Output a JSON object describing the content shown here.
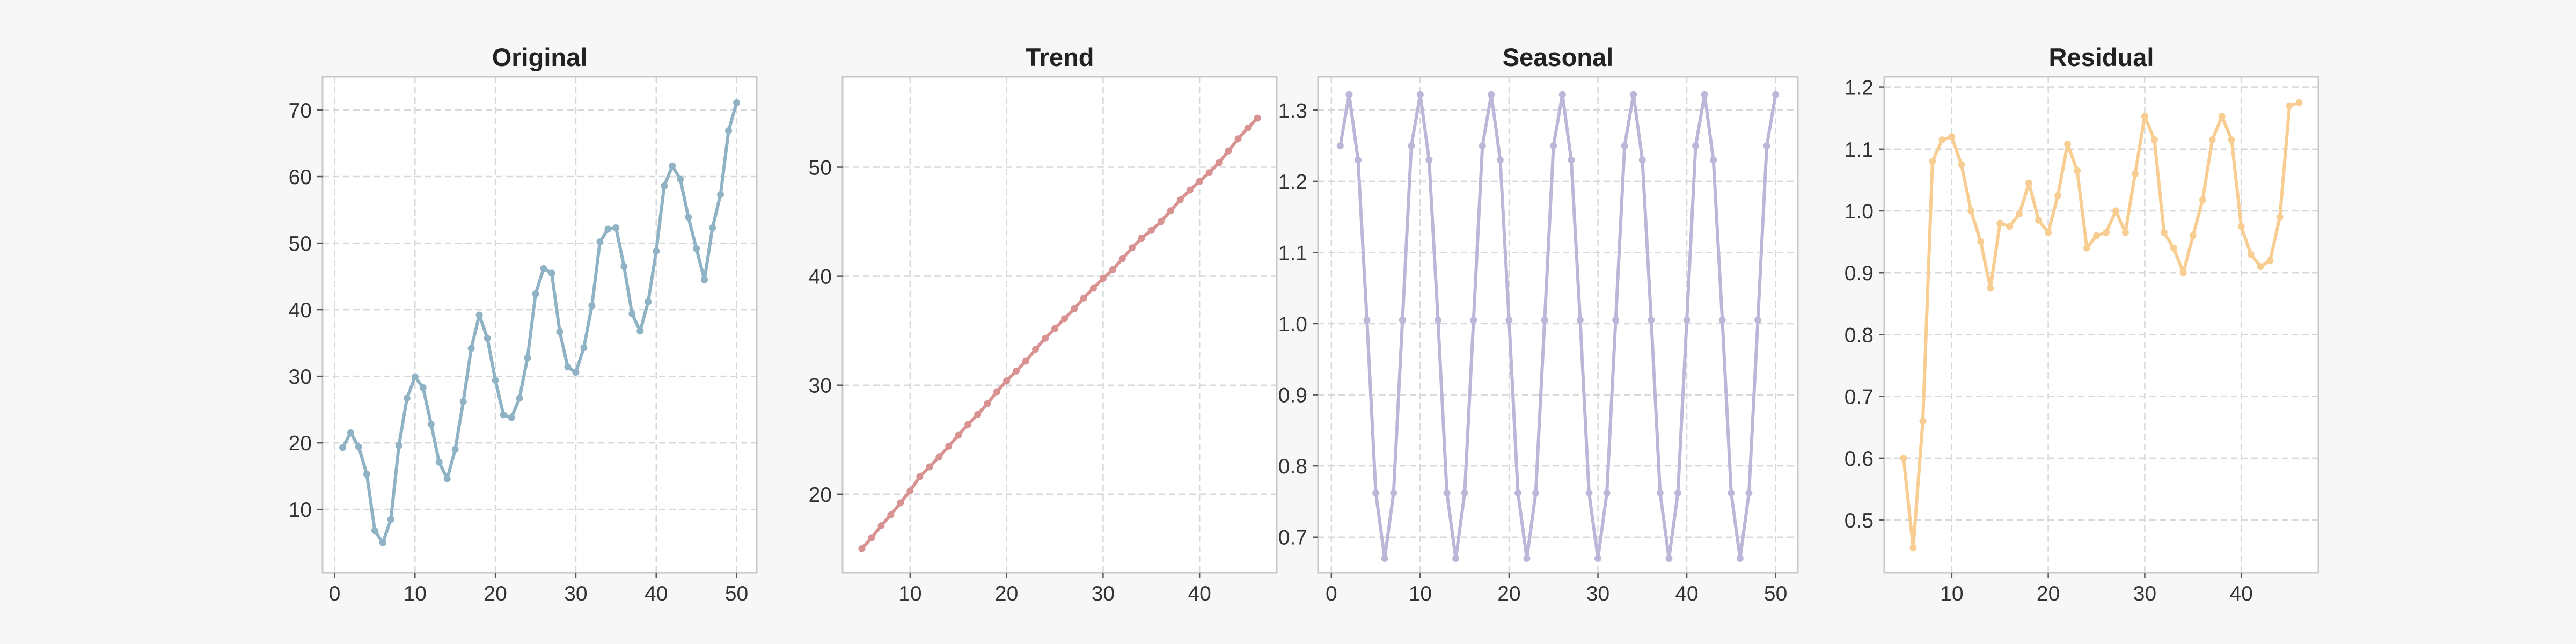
{
  "colors": {
    "figure_background": "#f7f7f7",
    "axes_background": "#ffffff",
    "frame": "#c8c8c8",
    "grid": "#d5d8dc"
  },
  "chart_data": [
    {
      "type": "line",
      "title": "Original",
      "color": "#8fb3c4",
      "grid": true,
      "xlim": [
        -1.5,
        52.5
      ],
      "ylim": [
        0.5,
        75.0
      ],
      "xticks": [
        0,
        10,
        20,
        30,
        40,
        50
      ],
      "yticks": [
        10,
        20,
        30,
        40,
        50,
        60,
        70
      ],
      "x": [
        1,
        2,
        3,
        4,
        5,
        6,
        7,
        8,
        9,
        10,
        11,
        12,
        13,
        14,
        15,
        16,
        17,
        18,
        19,
        20,
        21,
        22,
        23,
        24,
        25,
        26,
        27,
        28,
        29,
        30,
        31,
        32,
        33,
        34,
        35,
        36,
        37,
        38,
        39,
        40,
        41,
        42,
        43,
        44,
        45,
        46,
        47,
        48,
        49,
        50
      ],
      "y": [
        19.3,
        21.5,
        19.4,
        15.3,
        6.8,
        5.0,
        8.5,
        19.6,
        26.7,
        29.9,
        28.3,
        22.8,
        17.1,
        14.6,
        19.0,
        26.2,
        34.2,
        39.2,
        35.7,
        29.4,
        24.2,
        23.8,
        26.7,
        32.8,
        42.4,
        46.2,
        45.5,
        36.7,
        31.4,
        30.6,
        34.3,
        40.6,
        50.2,
        52.1,
        52.3,
        46.5,
        39.4,
        36.8,
        41.2,
        48.8,
        58.6,
        61.6,
        59.6,
        53.9,
        49.2,
        44.5,
        52.3,
        57.3,
        66.9,
        71.1
      ]
    },
    {
      "type": "line",
      "title": "Trend",
      "color": "#d99292",
      "grid": true,
      "xlim": [
        3.0,
        48.0
      ],
      "ylim": [
        12.8,
        58.3
      ],
      "xticks": [
        10,
        20,
        30,
        40
      ],
      "yticks": [
        20,
        30,
        40,
        50
      ],
      "x": [
        5,
        6,
        7,
        8,
        9,
        10,
        11,
        12,
        13,
        14,
        15,
        16,
        17,
        18,
        19,
        20,
        21,
        22,
        23,
        24,
        25,
        26,
        27,
        28,
        29,
        30,
        31,
        32,
        33,
        34,
        35,
        36,
        37,
        38,
        39,
        40,
        41,
        42,
        43,
        44,
        45,
        46
      ],
      "y": [
        15.0,
        16.0,
        17.1,
        18.1,
        19.2,
        20.3,
        21.6,
        22.5,
        23.4,
        24.4,
        25.4,
        26.4,
        27.3,
        28.3,
        29.4,
        30.4,
        31.3,
        32.2,
        33.3,
        34.3,
        35.2,
        36.1,
        37.0,
        38.0,
        38.9,
        39.8,
        40.6,
        41.6,
        42.6,
        43.5,
        44.2,
        45.0,
        46.0,
        47.0,
        47.9,
        48.7,
        49.5,
        50.4,
        51.5,
        52.6,
        53.6,
        54.5
      ]
    },
    {
      "type": "line",
      "title": "Seasonal",
      "color": "#bcb6d8",
      "grid": true,
      "xlim": [
        -1.5,
        52.5
      ],
      "ylim": [
        0.65,
        1.347
      ],
      "xticks": [
        0,
        10,
        20,
        30,
        40,
        50
      ],
      "yticks": [
        0.7,
        0.8,
        0.9,
        1.0,
        1.1,
        1.2,
        1.3
      ],
      "x": [
        1,
        2,
        3,
        4,
        5,
        6,
        7,
        8,
        9,
        10,
        11,
        12,
        13,
        14,
        15,
        16,
        17,
        18,
        19,
        20,
        21,
        22,
        23,
        24,
        25,
        26,
        27,
        28,
        29,
        30,
        31,
        32,
        33,
        34,
        35,
        36,
        37,
        38,
        39,
        40,
        41,
        42,
        43,
        44,
        45,
        46,
        47,
        48,
        49,
        50
      ],
      "y": [
        1.25,
        1.322,
        1.23,
        1.005,
        0.762,
        0.67,
        0.762,
        1.005,
        1.25,
        1.322,
        1.23,
        1.005,
        0.762,
        0.67,
        0.762,
        1.005,
        1.25,
        1.322,
        1.23,
        1.005,
        0.762,
        0.67,
        0.762,
        1.005,
        1.25,
        1.322,
        1.23,
        1.005,
        0.762,
        0.67,
        0.762,
        1.005,
        1.25,
        1.322,
        1.23,
        1.005,
        0.762,
        0.67,
        0.762,
        1.005,
        1.25,
        1.322,
        1.23,
        1.005,
        0.762,
        0.67,
        0.762,
        1.005,
        1.25,
        1.322
      ]
    },
    {
      "type": "line",
      "title": "Residual",
      "color": "#f8cd92",
      "grid": true,
      "xlim": [
        3.0,
        48.0
      ],
      "ylim": [
        0.415,
        1.217
      ],
      "xticks": [
        10,
        20,
        30,
        40
      ],
      "yticks": [
        0.5,
        0.6,
        0.7,
        0.8,
        0.9,
        1.0,
        1.1,
        1.2
      ],
      "x": [
        5,
        6,
        7,
        8,
        9,
        10,
        11,
        12,
        13,
        14,
        15,
        16,
        17,
        18,
        19,
        20,
        21,
        22,
        23,
        24,
        25,
        26,
        27,
        28,
        29,
        30,
        31,
        32,
        33,
        34,
        35,
        36,
        37,
        38,
        39,
        40,
        41,
        42,
        43,
        44,
        45,
        46
      ],
      "y": [
        0.6,
        0.455,
        0.66,
        1.08,
        1.115,
        1.12,
        1.075,
        1.0,
        0.95,
        0.875,
        0.98,
        0.975,
        0.995,
        1.045,
        0.985,
        0.965,
        1.025,
        1.108,
        1.065,
        0.94,
        0.96,
        0.965,
        1.0,
        0.965,
        1.06,
        1.153,
        1.115,
        0.965,
        0.94,
        0.9,
        0.96,
        1.018,
        1.115,
        1.153,
        1.115,
        0.975,
        0.93,
        0.91,
        0.92,
        0.99,
        1.17,
        1.175
      ]
    }
  ]
}
